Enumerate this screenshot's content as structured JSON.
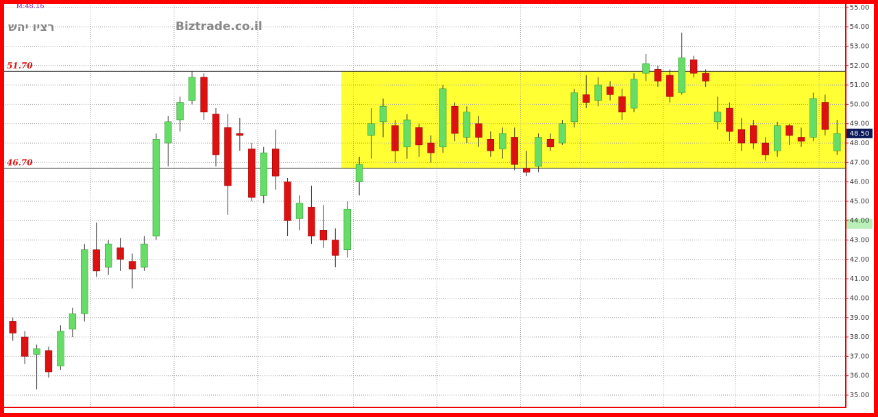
{
  "chart_data": {
    "type": "candlestick",
    "title": "רציו יהש",
    "watermark": "Biztrade.co.il",
    "indicator_label": "M:48.16",
    "ylim": [
      34.4,
      55.1
    ],
    "yticks": [
      {
        "value": 35,
        "label": "35.00"
      },
      {
        "value": 36,
        "label": "36.00"
      },
      {
        "value": 37,
        "label": "37.00"
      },
      {
        "value": 38,
        "label": "38.00"
      },
      {
        "value": 39,
        "label": "39.00"
      },
      {
        "value": 40,
        "label": "40.00"
      },
      {
        "value": 41,
        "label": "41.00"
      },
      {
        "value": 42,
        "label": "42.00"
      },
      {
        "value": 43,
        "label": "43.00"
      },
      {
        "value": 44,
        "label": "44.00"
      },
      {
        "value": 45,
        "label": "45.00"
      },
      {
        "value": 46,
        "label": "46.00"
      },
      {
        "value": 47,
        "label": "47.00"
      },
      {
        "value": 48,
        "label": "48.00"
      },
      {
        "value": 49,
        "label": "49.00"
      },
      {
        "value": 50,
        "label": "50.00"
      },
      {
        "value": 51,
        "label": "51.00"
      },
      {
        "value": 52,
        "label": "52.00"
      },
      {
        "value": 53,
        "label": "53.00"
      },
      {
        "value": 54,
        "label": "54.00"
      },
      {
        "value": 55,
        "label": "55.00"
      }
    ],
    "grid": true,
    "up_color": "#66dd66",
    "down_color": "#dd1111",
    "levels": [
      {
        "value": 51.7,
        "label": "51.70"
      },
      {
        "value": 46.7,
        "label": "46.70"
      }
    ],
    "highlight": {
      "from_candle": 28,
      "ymin": 46.7,
      "ymax": 51.7,
      "color": "#ffff33"
    },
    "last_price": {
      "value": 48.5,
      "label": "48.50"
    },
    "xgrid_at": [
      7,
      14,
      21,
      29,
      36,
      43,
      48,
      55,
      61,
      68
    ],
    "ohlc": [
      [
        38.8,
        39.0,
        37.8,
        38.2
      ],
      [
        38.0,
        38.3,
        36.6,
        37.0
      ],
      [
        37.1,
        37.6,
        35.3,
        37.4
      ],
      [
        37.3,
        37.5,
        35.9,
        36.2
      ],
      [
        36.5,
        38.6,
        36.3,
        38.3
      ],
      [
        38.4,
        39.5,
        38.0,
        39.2
      ],
      [
        39.2,
        42.8,
        38.8,
        42.5
      ],
      [
        42.5,
        43.9,
        41.1,
        41.4
      ],
      [
        41.6,
        43.0,
        41.2,
        42.8
      ],
      [
        42.6,
        43.1,
        41.4,
        42.0
      ],
      [
        41.9,
        42.3,
        40.5,
        41.5
      ],
      [
        41.6,
        43.2,
        41.4,
        42.8
      ],
      [
        43.2,
        48.5,
        43.0,
        48.2
      ],
      [
        48.0,
        49.4,
        46.8,
        49.1
      ],
      [
        49.2,
        50.4,
        48.6,
        50.1
      ],
      [
        50.2,
        51.7,
        50.0,
        51.4
      ],
      [
        51.4,
        51.6,
        49.2,
        49.6
      ],
      [
        49.5,
        49.8,
        46.8,
        47.4
      ],
      [
        48.8,
        49.5,
        44.3,
        45.8
      ],
      [
        48.5,
        49.3,
        47.6,
        48.4
      ],
      [
        47.7,
        48.0,
        45.0,
        45.2
      ],
      [
        45.3,
        47.8,
        44.9,
        47.5
      ],
      [
        47.7,
        48.7,
        45.6,
        46.3
      ],
      [
        46.0,
        46.2,
        43.2,
        44.0
      ],
      [
        44.1,
        45.3,
        43.5,
        44.9
      ],
      [
        44.7,
        45.8,
        42.8,
        43.2
      ],
      [
        43.5,
        44.8,
        42.6,
        43.0
      ],
      [
        43.0,
        43.6,
        41.6,
        42.2
      ],
      [
        42.5,
        45.0,
        42.1,
        44.6
      ],
      [
        46.0,
        47.3,
        45.3,
        46.9
      ],
      [
        48.4,
        49.8,
        47.2,
        49.0
      ],
      [
        49.1,
        50.3,
        48.3,
        49.9
      ],
      [
        48.9,
        49.2,
        47.0,
        47.6
      ],
      [
        47.8,
        49.5,
        47.2,
        49.2
      ],
      [
        48.8,
        49.0,
        47.3,
        47.9
      ],
      [
        48.0,
        48.4,
        47.0,
        47.5
      ],
      [
        47.8,
        51.0,
        47.5,
        50.8
      ],
      [
        49.9,
        50.1,
        48.1,
        48.5
      ],
      [
        48.3,
        49.9,
        48.0,
        49.6
      ],
      [
        49.0,
        49.4,
        47.8,
        48.3
      ],
      [
        48.2,
        48.6,
        47.3,
        47.6
      ],
      [
        47.7,
        48.8,
        47.2,
        48.5
      ],
      [
        48.3,
        48.8,
        46.6,
        46.9
      ],
      [
        46.7,
        47.6,
        46.3,
        46.5
      ],
      [
        46.8,
        48.5,
        46.5,
        48.3
      ],
      [
        48.2,
        48.5,
        47.6,
        47.8
      ],
      [
        48.0,
        49.2,
        47.9,
        49.0
      ],
      [
        49.1,
        50.8,
        48.8,
        50.6
      ],
      [
        50.5,
        51.5,
        49.8,
        50.1
      ],
      [
        50.2,
        51.4,
        49.9,
        51.0
      ],
      [
        50.9,
        51.2,
        50.2,
        50.5
      ],
      [
        50.4,
        50.8,
        49.2,
        49.6
      ],
      [
        49.8,
        51.6,
        49.6,
        51.3
      ],
      [
        51.6,
        52.6,
        51.2,
        52.1
      ],
      [
        51.8,
        52.0,
        50.9,
        51.2
      ],
      [
        51.5,
        51.8,
        50.1,
        50.4
      ],
      [
        50.6,
        53.7,
        50.5,
        52.4
      ],
      [
        52.3,
        52.5,
        51.4,
        51.6
      ],
      [
        51.6,
        51.8,
        50.9,
        51.2
      ],
      [
        49.1,
        50.4,
        48.7,
        49.6
      ],
      [
        49.8,
        50.1,
        48.1,
        48.6
      ],
      [
        48.7,
        49.3,
        47.6,
        48.0
      ],
      [
        48.9,
        49.2,
        47.7,
        48.0
      ],
      [
        48.0,
        48.3,
        47.1,
        47.4
      ],
      [
        47.6,
        49.1,
        47.3,
        48.9
      ],
      [
        48.9,
        49.0,
        47.9,
        48.4
      ],
      [
        48.3,
        48.8,
        47.8,
        48.1
      ],
      [
        48.3,
        50.6,
        48.1,
        50.3
      ],
      [
        50.1,
        50.5,
        48.4,
        48.7
      ],
      [
        47.6,
        49.2,
        47.4,
        48.5
      ]
    ]
  }
}
